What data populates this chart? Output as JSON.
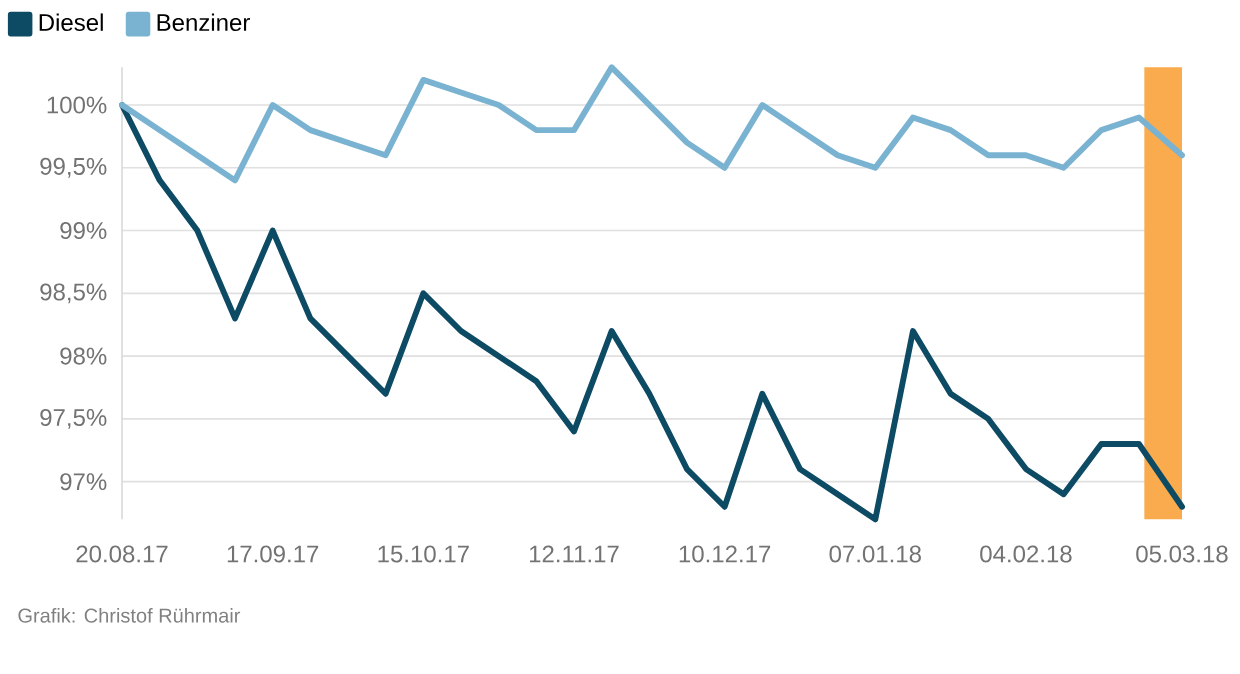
{
  "chart_data": {
    "type": "line",
    "x": [
      "2017-08-20",
      "2017-08-27",
      "2017-09-03",
      "2017-09-10",
      "2017-09-17",
      "2017-09-24",
      "2017-10-01",
      "2017-10-08",
      "2017-10-15",
      "2017-10-22",
      "2017-10-29",
      "2017-11-05",
      "2017-11-12",
      "2017-11-19",
      "2017-11-26",
      "2017-12-03",
      "2017-12-10",
      "2017-12-17",
      "2017-12-24",
      "2017-12-31",
      "2018-01-07",
      "2018-01-14",
      "2018-01-21",
      "2018-01-28",
      "2018-02-04",
      "2018-02-11",
      "2018-02-18",
      "2018-02-25",
      "2018-03-05"
    ],
    "series": [
      {
        "name": "Diesel",
        "color": "#0d4a64",
        "values": [
          100,
          99.4,
          99.0,
          98.3,
          99.0,
          98.3,
          98.0,
          97.7,
          98.5,
          98.2,
          98.0,
          97.8,
          97.4,
          98.2,
          97.7,
          97.1,
          96.8,
          97.7,
          97.1,
          96.9,
          96.7,
          98.2,
          97.7,
          97.5,
          97.1,
          96.9,
          97.3,
          97.3,
          96.8
        ]
      },
      {
        "name": "Benziner",
        "color": "#7ab3d1",
        "values": [
          100,
          99.8,
          99.6,
          99.4,
          100,
          99.8,
          99.7,
          99.6,
          100.2,
          100.1,
          100,
          99.8,
          99.8,
          100.3,
          100.0,
          99.7,
          99.5,
          100,
          99.8,
          99.6,
          99.5,
          99.9,
          99.8,
          99.6,
          99.6,
          99.5,
          99.8,
          99.9,
          99.6
        ]
      }
    ],
    "xlim": [
      "2017-08-20",
      "2018-03-05"
    ],
    "xticks": [
      {
        "value": "2017-08-20",
        "label": "20.08.17"
      },
      {
        "value": "2017-09-17",
        "label": "17.09.17"
      },
      {
        "value": "2017-10-15",
        "label": "15.10.17"
      },
      {
        "value": "2017-11-12",
        "label": "12.11.17"
      },
      {
        "value": "2017-12-10",
        "label": "10.12.17"
      },
      {
        "value": "2018-01-07",
        "label": "07.01.18"
      },
      {
        "value": "2018-02-04",
        "label": "04.02.18"
      },
      {
        "value": "2018-03-05",
        "label": "05.03.18"
      }
    ],
    "yticks": [
      {
        "value": 97,
        "label": "97%"
      },
      {
        "value": 97.5,
        "label": "97,5%"
      },
      {
        "value": 98,
        "label": "98%"
      },
      {
        "value": 98.5,
        "label": "98,5%"
      },
      {
        "value": 99,
        "label": "99%"
      },
      {
        "value": 99.5,
        "label": "99,5%"
      },
      {
        "value": 100,
        "label": "100%"
      }
    ],
    "ylim": [
      96.7,
      100.3
    ],
    "bands": [
      {
        "axis": "x",
        "from": "2018-02-26",
        "to": "2018-03-05",
        "color": "#f9ab4e"
      }
    ],
    "grid": "y",
    "legend": "top left",
    "line_style": "solid",
    "marker": "none",
    "annotations": [
      "Grafik: Christof Rührmair"
    ]
  }
}
